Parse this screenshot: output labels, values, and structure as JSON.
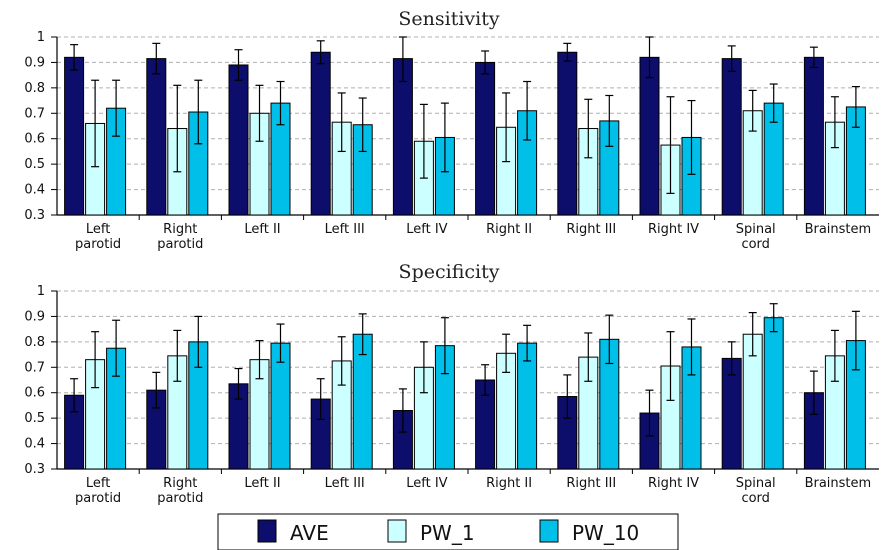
{
  "chart_data": [
    {
      "type": "bar",
      "title": "Sensitivity",
      "categories": [
        "Left parotid",
        "Right parotid",
        "Left II",
        "Left III",
        "Left IV",
        "Right II",
        "Right III",
        "Right IV",
        "Spinal cord",
        "Brainstem"
      ],
      "ylim": [
        0.3,
        1
      ],
      "yticks": [
        0.3,
        0.4,
        0.5,
        0.6,
        0.7,
        0.8,
        0.9,
        1
      ],
      "grid": true,
      "series": [
        {
          "name": "AVE",
          "values": [
            0.92,
            0.915,
            0.89,
            0.94,
            0.915,
            0.9,
            0.94,
            0.92,
            0.915,
            0.92
          ],
          "error": [
            0.05,
            0.06,
            0.06,
            0.045,
            0.09,
            0.045,
            0.035,
            0.08,
            0.05,
            0.04
          ]
        },
        {
          "name": "PW_1",
          "values": [
            0.66,
            0.64,
            0.7,
            0.665,
            0.59,
            0.645,
            0.64,
            0.575,
            0.71,
            0.665
          ],
          "error": [
            0.17,
            0.17,
            0.11,
            0.115,
            0.145,
            0.135,
            0.115,
            0.19,
            0.08,
            0.1
          ]
        },
        {
          "name": "PW_10",
          "values": [
            0.72,
            0.705,
            0.74,
            0.655,
            0.605,
            0.71,
            0.67,
            0.605,
            0.74,
            0.725
          ],
          "error": [
            0.11,
            0.125,
            0.085,
            0.105,
            0.135,
            0.115,
            0.1,
            0.145,
            0.075,
            0.08
          ]
        }
      ]
    },
    {
      "type": "bar",
      "title": "Specificity",
      "categories": [
        "Left parotid",
        "Right parotid",
        "Left II",
        "Left III",
        "Left IV",
        "Right II",
        "Right III",
        "Right IV",
        "Spinal cord",
        "Brainstem"
      ],
      "ylim": [
        0.3,
        1
      ],
      "yticks": [
        0.3,
        0.4,
        0.5,
        0.6,
        0.7,
        0.8,
        0.9,
        1
      ],
      "grid": true,
      "series": [
        {
          "name": "AVE",
          "values": [
            0.59,
            0.61,
            0.635,
            0.575,
            0.53,
            0.65,
            0.585,
            0.52,
            0.735,
            0.6
          ],
          "error": [
            0.065,
            0.07,
            0.06,
            0.08,
            0.085,
            0.06,
            0.085,
            0.09,
            0.065,
            0.085
          ]
        },
        {
          "name": "PW_1",
          "values": [
            0.73,
            0.745,
            0.73,
            0.725,
            0.7,
            0.755,
            0.74,
            0.705,
            0.83,
            0.745
          ],
          "error": [
            0.11,
            0.1,
            0.075,
            0.095,
            0.1,
            0.075,
            0.095,
            0.135,
            0.085,
            0.1
          ]
        },
        {
          "name": "PW_10",
          "values": [
            0.775,
            0.8,
            0.795,
            0.83,
            0.785,
            0.795,
            0.81,
            0.78,
            0.895,
            0.805
          ],
          "error": [
            0.11,
            0.1,
            0.075,
            0.08,
            0.11,
            0.07,
            0.095,
            0.11,
            0.055,
            0.115
          ]
        }
      ]
    }
  ],
  "legend": {
    "position": "bottom-center",
    "items": [
      {
        "label": "AVE",
        "color": "#0d0d6b"
      },
      {
        "label": "PW_1",
        "color": "#ccffff"
      },
      {
        "label": "PW_10",
        "color": "#00c0ea"
      }
    ]
  },
  "colors": {
    "AVE": "#0d0d6b",
    "PW_1": "#ccffff",
    "PW_10": "#00c0ea",
    "grid": "#b0b0b0",
    "axis": "#000000"
  }
}
